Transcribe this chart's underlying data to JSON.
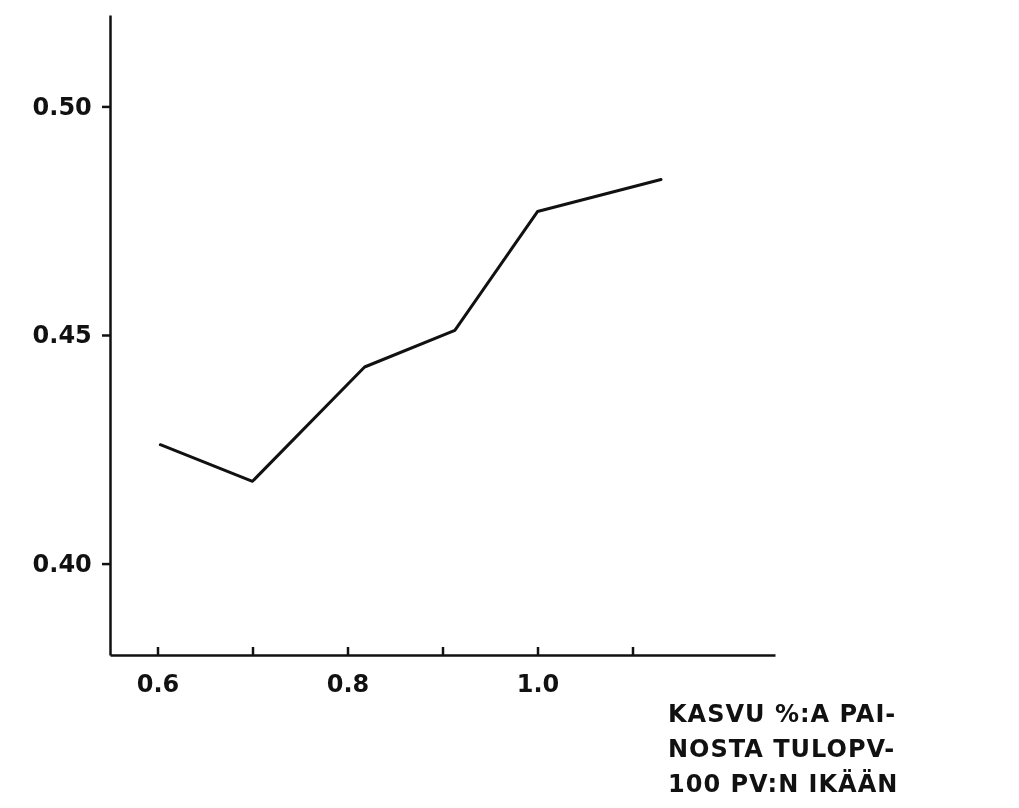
{
  "chart_data": {
    "type": "line",
    "xlabel": "KASVU %:A PAI-\nNOSTA TULOPV-\n100 PV:N IKÄÄN",
    "x": [
      0.603,
      0.7,
      0.818,
      0.913,
      1.0,
      1.13
    ],
    "series": [
      {
        "color": "#111111",
        "values": [
          0.426,
          0.418,
          0.443,
          0.451,
          0.477,
          0.484
        ]
      }
    ],
    "xlim": [
      0.55,
      1.25
    ],
    "xticks": [
      0.6,
      {
        "value": 0.7,
        "label": null
      },
      0.8,
      {
        "value": 0.9,
        "label": null
      },
      {
        "value": 1.0,
        "label": "1.0"
      },
      {
        "value": 1.1,
        "label": null
      }
    ],
    "ylim": [
      0.38,
      0.52
    ],
    "yticks": [
      {
        "value": 0.4,
        "label": "0.40"
      },
      {
        "value": 0.45,
        "label": "0.45"
      },
      {
        "value": 0.5,
        "label": "0.50"
      }
    ],
    "grid": false,
    "marker": "none",
    "line_style": "solid"
  }
}
